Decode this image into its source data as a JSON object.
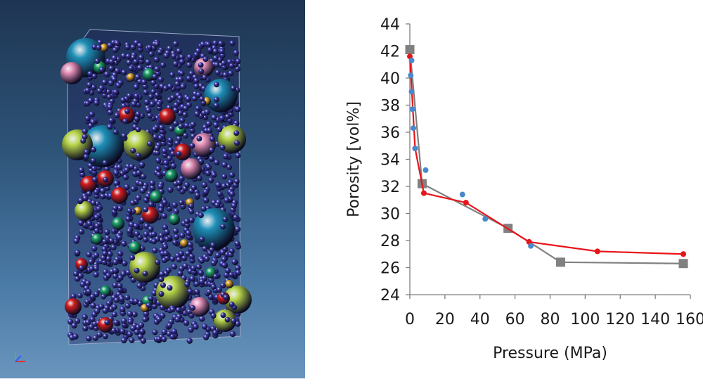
{
  "simulation": {
    "description_icon": "xyz-axis-triad-icon",
    "sphere_colors": {
      "small_particle": "#3c3aa8",
      "cyan": "#1f8fb8",
      "pink": "#e58fb7",
      "lime": "#b8d64a",
      "red": "#d41e1e",
      "green": "#1ea66a",
      "gold": "#e0a524"
    }
  },
  "chart_data": {
    "type": "line",
    "title": "",
    "xlabel": "Pressure (MPa)",
    "ylabel": "Porosity [vol%]",
    "xlim": [
      0,
      160
    ],
    "ylim": [
      24,
      44
    ],
    "xticks": [
      0,
      20,
      40,
      60,
      80,
      100,
      120,
      140,
      160
    ],
    "yticks": [
      24,
      26,
      28,
      30,
      32,
      34,
      36,
      38,
      40,
      42,
      44
    ],
    "grid": false,
    "series": [
      {
        "color": "#808080",
        "marker": "square",
        "line": true,
        "x": [
          0,
          7,
          56,
          86,
          156
        ],
        "y": [
          42.1,
          32.2,
          28.9,
          26.4,
          26.3
        ]
      },
      {
        "color": "#e8141a",
        "marker": "circle",
        "line": true,
        "x": [
          0,
          3,
          8,
          32,
          68,
          107,
          156
        ],
        "y": [
          41.6,
          34.8,
          31.5,
          30.8,
          27.9,
          27.2,
          27.0
        ]
      },
      {
        "color": "#4a88cc",
        "marker": "circle",
        "line": false,
        "x": [
          1,
          0.5,
          1,
          1.5,
          2,
          3,
          9,
          30,
          43,
          69
        ],
        "y": [
          41.3,
          40.2,
          39.0,
          37.7,
          36.3,
          34.8,
          33.2,
          31.4,
          29.6,
          27.6
        ]
      }
    ]
  }
}
